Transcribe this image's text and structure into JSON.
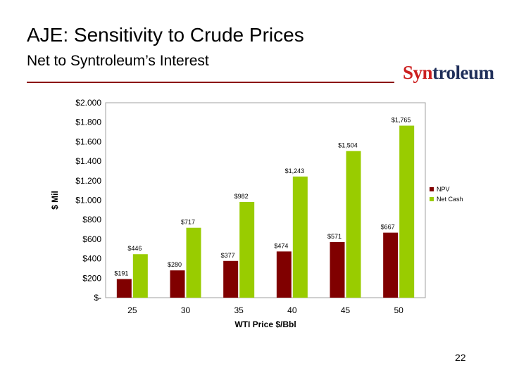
{
  "slide": {
    "title": "AJE: Sensitivity to Crude Prices",
    "subtitle": "Net to Syntroleum’s Interest",
    "logo_part1": "Syn",
    "logo_part2": "troleum",
    "page_number": "22"
  },
  "colors": {
    "npv": "#800000",
    "net_cash": "#99cc00",
    "accent": "#8b0000"
  },
  "chart_data": {
    "type": "bar",
    "xlabel": "WTI Price $/Bbl",
    "ylabel": "$ Mil",
    "ylim": [
      0,
      2000
    ],
    "grid": false,
    "legend_position": "right",
    "categories": [
      "25",
      "30",
      "35",
      "40",
      "45",
      "50"
    ],
    "yticks": [
      0,
      200,
      400,
      600,
      800,
      1000,
      1200,
      1400,
      1600,
      1800,
      2000
    ],
    "ytick_labels": [
      "$-",
      "$200",
      "$400",
      "$600",
      "$800",
      "$1.000",
      "$1.200",
      "$1.400",
      "$1.600",
      "$1.800",
      "$2.000"
    ],
    "series": [
      {
        "name": "NPV",
        "values": [
          191,
          280,
          377,
          474,
          571,
          667
        ],
        "labels": [
          "$191",
          "$280",
          "$377",
          "$474",
          "$571",
          "$667"
        ]
      },
      {
        "name": "Net Cash",
        "values": [
          446,
          717,
          982,
          1243,
          1504,
          1765
        ],
        "labels": [
          "$446",
          "$717",
          "$982",
          "$1,243",
          "$1,504",
          "$1,765"
        ]
      }
    ]
  }
}
